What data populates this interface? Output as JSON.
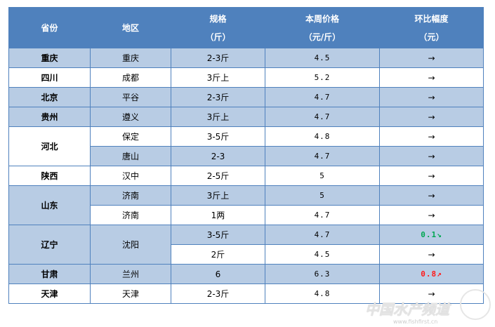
{
  "header": {
    "province": "省份",
    "region": "地区",
    "spec": "规格",
    "spec_unit": "（斤）",
    "price": "本周价格",
    "price_unit": "（元/斤）",
    "change": "环比幅度",
    "change_unit": "（元）"
  },
  "rows": [
    {
      "province": "重庆",
      "region": "重庆",
      "spec": "2-3斤",
      "price": "4.5",
      "change": "→"
    },
    {
      "province": "四川",
      "region": "成都",
      "spec": "3斤上",
      "price": "5.2",
      "change": "→"
    },
    {
      "province": "北京",
      "region": "平谷",
      "spec": "2-3斤",
      "price": "4.7",
      "change": "→"
    },
    {
      "province": "贵州",
      "region": "遵义",
      "spec": "3斤上",
      "price": "4.7",
      "change": "→"
    },
    {
      "province": "河北",
      "region": "保定",
      "spec": "3-5斤",
      "price": "4.8",
      "change": "→"
    },
    {
      "province": "河北",
      "region": "唐山",
      "spec": "2-3",
      "price": "4.7",
      "change": "→"
    },
    {
      "province": "陕西",
      "region": "汉中",
      "spec": "2-5斤",
      "price": "5",
      "change": "→"
    },
    {
      "province": "山东",
      "region": "济南",
      "spec": "3斤上",
      "price": "5",
      "change": "→"
    },
    {
      "province": "山东",
      "region": "济南",
      "spec": "1两",
      "price": "4.7",
      "change": "→"
    },
    {
      "province": "辽宁",
      "region": "沈阳",
      "spec": "3-5斤",
      "price": "4.7",
      "change": "0.1↘",
      "change_color": "#00a651"
    },
    {
      "province": "辽宁",
      "region": "沈阳",
      "spec": "2斤",
      "price": "4.5",
      "change": "→"
    },
    {
      "province": "甘肃",
      "region": "兰州",
      "spec": "6",
      "price": "6.3",
      "change": "0.8↗",
      "change_color": "#ff1a1a"
    },
    {
      "province": "天津",
      "region": "天津",
      "spec": "2-3斤",
      "price": "4.8",
      "change": "→"
    }
  ],
  "watermark": {
    "text": "中国水产频道",
    "url": "www.fishfirst.cn"
  },
  "colors": {
    "header": "#4f81bd",
    "band": "#b8cce4"
  }
}
